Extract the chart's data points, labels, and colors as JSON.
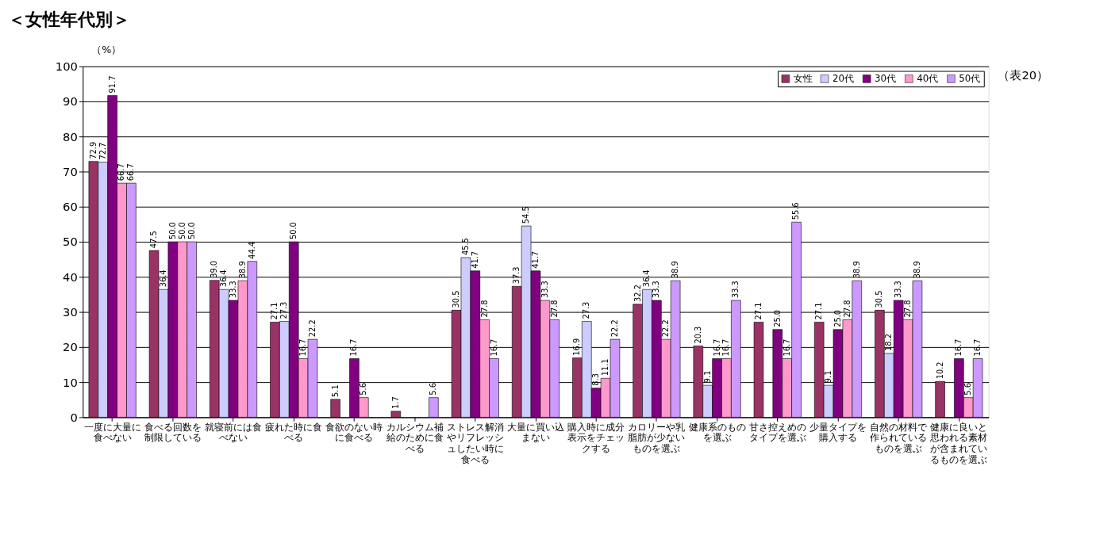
{
  "chart_data": {
    "type": "bar",
    "title": "＜女性年代別＞",
    "ylabel": "（%）",
    "categories": [
      "一度に大量に食べない",
      "食べる回数を制限している",
      "就寝前には食べない",
      "疲れた時に食べる",
      "食欲のない時に食べる",
      "カルシウム補給のために食べる",
      "ストレス解消やリフレッシュしたい時に食べる",
      "大量に買い込まない",
      "購入時に成分表示をチェックする",
      "カロリーや乳脂肪が少ないものを選ぶ",
      "健康系のものを選ぶ",
      "甘さ控えめのタイプを選ぶ",
      "少量タイプを購入する",
      "自然の材料で作られているものを選ぶ",
      "健康に良いと思われる素材が含まれているものを選ぶ"
    ],
    "series": [
      {
        "name": "女性",
        "color": "#993366",
        "values": [
          72.9,
          47.5,
          39.0,
          27.1,
          5.1,
          1.7,
          30.5,
          37.3,
          16.9,
          32.2,
          20.3,
          27.1,
          27.1,
          30.5,
          10.2
        ],
        "value_labels": [
          "72.9",
          "47.5",
          "39.0",
          "27.1",
          "5.1",
          "1.7",
          "30.5",
          "37.3",
          "16.9",
          "32.2",
          "20.3",
          "27.1",
          "27.1",
          "30.5",
          "10.2"
        ]
      },
      {
        "name": "20代",
        "color": "#ccccff",
        "values": [
          72.7,
          36.4,
          36.4,
          27.3,
          null,
          null,
          45.5,
          54.5,
          27.3,
          36.4,
          9.1,
          null,
          9.1,
          18.2,
          null
        ],
        "value_labels": [
          "72.7",
          "36.4",
          "36.4",
          "27.3",
          null,
          null,
          "45.5",
          "54.5",
          "27.3",
          "36.4",
          "9.1",
          null,
          "9.1",
          "18.2",
          null
        ]
      },
      {
        "name": "30代",
        "color": "#800080",
        "values": [
          91.7,
          50.0,
          33.3,
          50.0,
          16.7,
          null,
          41.7,
          41.7,
          8.3,
          33.3,
          16.7,
          25.0,
          25.0,
          33.3,
          16.7
        ],
        "value_labels": [
          "91.7",
          "50.0",
          "33.3",
          "50.0",
          "16.7",
          null,
          "41.7",
          "41.7",
          "8.3",
          "33.3",
          "16.7",
          "25.0",
          "25.0",
          "33.3",
          "16.7"
        ]
      },
      {
        "name": "40代",
        "color": "#ff99cc",
        "values": [
          66.7,
          50.0,
          38.9,
          16.7,
          5.6,
          null,
          27.8,
          33.3,
          11.1,
          22.2,
          16.7,
          16.7,
          27.8,
          27.8,
          5.6
        ],
        "value_labels": [
          "66.7",
          "50.0",
          "38.9",
          "16.7",
          "5.6",
          null,
          "27.8",
          "33.3",
          "11.1",
          "22.2",
          "16.7",
          "16.7",
          "27.8",
          "27.8",
          "5.6"
        ]
      },
      {
        "name": "50代",
        "color": "#cc99ff",
        "values": [
          66.7,
          50.0,
          44.4,
          22.2,
          null,
          5.6,
          16.7,
          27.8,
          22.2,
          38.9,
          33.3,
          55.6,
          38.9,
          38.9,
          16.7
        ],
        "value_labels": [
          "66.7",
          "50.0",
          "44.4",
          "22.2",
          null,
          "5.6",
          "16.7",
          "27.8",
          "22.2",
          "38.9",
          "33.3",
          "55.6",
          "38.9",
          "38.9",
          "16.7"
        ]
      }
    ],
    "ylim": [
      0,
      100
    ],
    "yticks": [
      0,
      10,
      20,
      30,
      40,
      50,
      60,
      70,
      80,
      90,
      100
    ],
    "grid": "y",
    "legend": "top right",
    "annotations": [
      "（表20）"
    ]
  }
}
